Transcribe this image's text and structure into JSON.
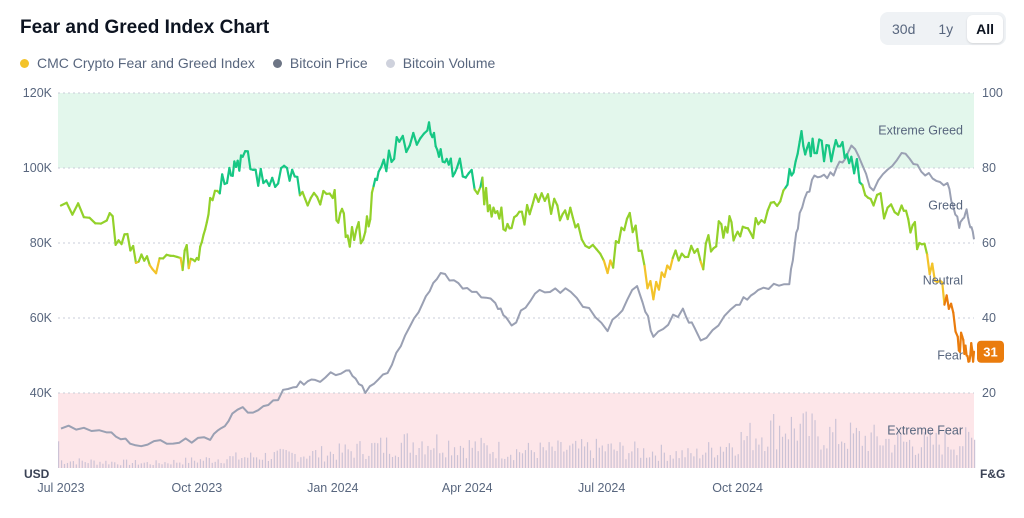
{
  "header": {
    "title": "Fear and Greed Index Chart"
  },
  "range_buttons": [
    {
      "label": "30d"
    },
    {
      "label": "1y"
    },
    {
      "label": "All"
    }
  ],
  "selected_range": "All",
  "legend": [
    {
      "label": "CMC Crypto Fear and Greed Index",
      "color": "#f3c32a"
    },
    {
      "label": "Bitcoin Price",
      "color": "#6d7585"
    },
    {
      "label": "Bitcoin Volume",
      "color": "#cfd2dd"
    }
  ],
  "axes": {
    "left_unit": "USD",
    "right_unit": "F&G",
    "left_ticks": [
      "40K",
      "60K",
      "80K",
      "100K",
      "120K"
    ],
    "right_ticks": [
      "20",
      "40",
      "60",
      "80",
      "100"
    ],
    "x_ticks": [
      "Jul 2023",
      "Oct 2023",
      "Jan 2024",
      "Apr 2024",
      "Jul 2024",
      "Oct 2024"
    ]
  },
  "zones": [
    "Extreme Greed",
    "Greed",
    "Neutral",
    "Fear",
    "Extreme Fear"
  ],
  "current_value": "31",
  "chart_data": {
    "type": "line",
    "x_range": [
      "2023-06-29",
      "2025-03-10"
    ],
    "y_left_range": [
      20000,
      120000
    ],
    "y_right_range": [
      0,
      100
    ],
    "zones": [
      {
        "name": "Extreme Fear",
        "from": 0,
        "to": 20,
        "color": "#fde6e9"
      },
      {
        "name": "Extreme Greed",
        "from": 80,
        "to": 100,
        "color": "#e3f7ec"
      }
    ],
    "grid": true,
    "legend_position": "top-left",
    "series": [
      {
        "name": "CMC Crypto Fear and Greed Index",
        "axis": "right",
        "dates": [
          "2023-07-01",
          "2023-08-01",
          "2023-08-17",
          "2023-09-01",
          "2023-09-20",
          "2023-10-01",
          "2023-10-10",
          "2023-10-23",
          "2023-11-01",
          "2023-11-15",
          "2023-12-01",
          "2023-12-15",
          "2024-01-01",
          "2024-01-11",
          "2024-01-23",
          "2024-02-01",
          "2024-02-15",
          "2024-03-05",
          "2024-03-14",
          "2024-03-25",
          "2024-04-10",
          "2024-04-20",
          "2024-05-01",
          "2024-05-15",
          "2024-06-01",
          "2024-06-15",
          "2024-07-05",
          "2024-07-20",
          "2024-08-05",
          "2024-08-20",
          "2024-09-06",
          "2024-09-20",
          "2024-10-01",
          "2024-10-15",
          "2024-11-01",
          "2024-11-12",
          "2024-11-22",
          "2024-12-05",
          "2024-12-17",
          "2025-01-01",
          "2025-01-20",
          "2025-02-01",
          "2025-02-15",
          "2025-02-27",
          "2025-03-05",
          "2025-03-10"
        ],
        "values": [
          70,
          66,
          58,
          53,
          56,
          56,
          72,
          80,
          83,
          76,
          80,
          70,
          72,
          62,
          63,
          79,
          87,
          90,
          85,
          80,
          75,
          68,
          64,
          70,
          70,
          65,
          52,
          68,
          45,
          58,
          55,
          65,
          63,
          65,
          74,
          87,
          84,
          85,
          83,
          70,
          70,
          60,
          50,
          35,
          30,
          31
        ]
      },
      {
        "name": "Bitcoin Price",
        "axis": "left",
        "dates": [
          "2023-07-01",
          "2023-08-01",
          "2023-08-20",
          "2023-09-15",
          "2023-10-10",
          "2023-10-25",
          "2023-11-15",
          "2023-12-05",
          "2023-12-20",
          "2024-01-10",
          "2024-01-23",
          "2024-02-10",
          "2024-02-28",
          "2024-03-14",
          "2024-04-01",
          "2024-04-20",
          "2024-05-01",
          "2024-05-20",
          "2024-06-10",
          "2024-07-05",
          "2024-07-25",
          "2024-08-05",
          "2024-08-25",
          "2024-09-06",
          "2024-09-30",
          "2024-10-15",
          "2024-11-05",
          "2024-11-12",
          "2024-11-22",
          "2024-12-05",
          "2024-12-17",
          "2025-01-01",
          "2025-01-20",
          "2025-02-05",
          "2025-02-20",
          "2025-02-28",
          "2025-03-05",
          "2025-03-10"
        ],
        "values": [
          30500,
          29500,
          26100,
          26500,
          27500,
          34500,
          36500,
          41500,
          43500,
          46000,
          40000,
          47500,
          61500,
          72000,
          68000,
          64000,
          58000,
          67500,
          67000,
          56500,
          68500,
          55000,
          62500,
          54000,
          63500,
          67500,
          69000,
          88000,
          98000,
          98000,
          106000,
          94000,
          104000,
          98000,
          96000,
          84000,
          89000,
          81000
        ]
      },
      {
        "name": "Bitcoin Volume",
        "axis": "hidden",
        "unit": "relative",
        "dates": [
          "2023-07-01",
          "2023-09-01",
          "2023-11-01",
          "2024-01-01",
          "2024-03-01",
          "2024-05-01",
          "2024-07-01",
          "2024-09-01",
          "2024-11-01",
          "2024-12-01",
          "2025-02-01",
          "2025-03-10"
        ],
        "values": [
          0.12,
          0.08,
          0.18,
          0.25,
          0.45,
          0.28,
          0.32,
          0.22,
          0.7,
          0.55,
          0.4,
          0.45
        ]
      }
    ]
  }
}
